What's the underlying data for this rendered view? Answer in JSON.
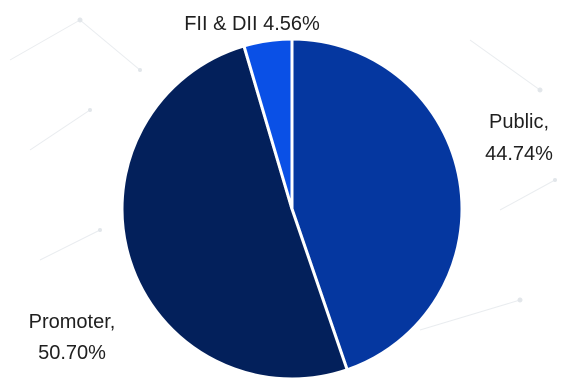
{
  "chart_data": {
    "type": "pie",
    "title": "",
    "slices": [
      {
        "label_lines": [
          "Public,",
          "44.74%"
        ],
        "name": "Public",
        "value": 44.74,
        "color": "#0537A0"
      },
      {
        "label_lines": [
          "Promoter,",
          "50.70%"
        ],
        "name": "Promoter",
        "value": 50.7,
        "color": "#03205B"
      },
      {
        "label_lines": [
          "FII & DII 4.56%"
        ],
        "name": "FII & DII",
        "value": 4.56,
        "color": "#0A50E6"
      }
    ],
    "start_angle_deg": 0,
    "direction": "clockwise",
    "legend": "none",
    "background": "#FFFFFF",
    "label_color": "#1F1F1F"
  }
}
